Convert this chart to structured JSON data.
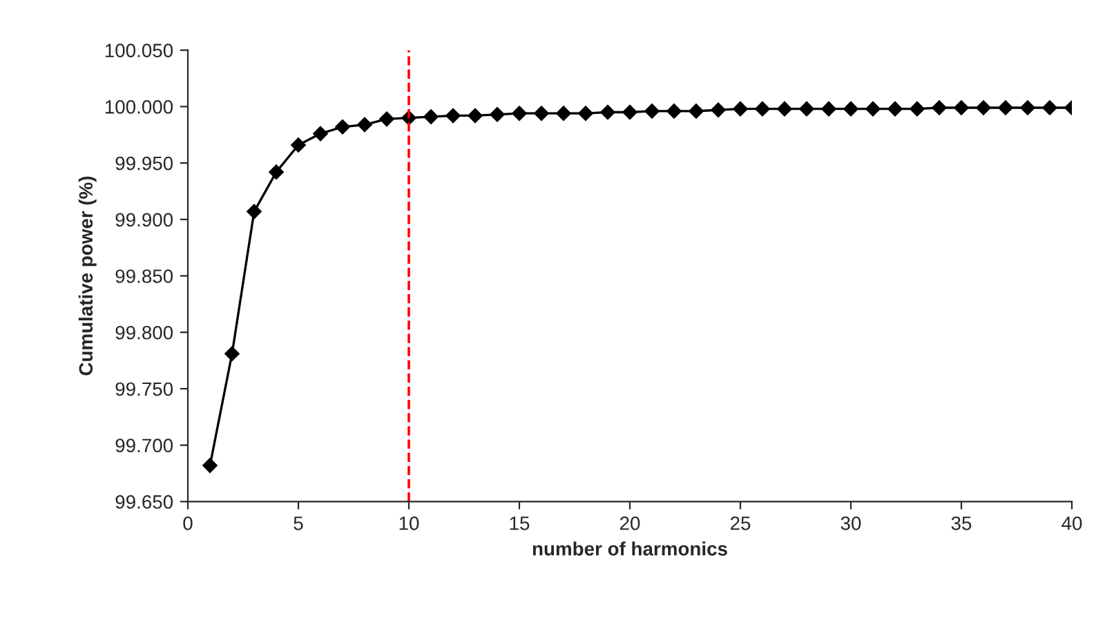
{
  "chart_data": {
    "type": "line",
    "xlabel": "number of harmonics",
    "ylabel": "Cumulative power (%)",
    "x": [
      1,
      2,
      3,
      4,
      5,
      6,
      7,
      8,
      9,
      10,
      11,
      12,
      13,
      14,
      15,
      16,
      17,
      18,
      19,
      20,
      21,
      22,
      23,
      24,
      25,
      26,
      27,
      28,
      29,
      30,
      31,
      32,
      33,
      34,
      35,
      36,
      37,
      38,
      39,
      40
    ],
    "series": [
      {
        "color": "#000000",
        "values": [
          99.682,
          99.781,
          99.907,
          99.942,
          99.966,
          99.976,
          99.982,
          99.984,
          99.989,
          99.99,
          99.991,
          99.992,
          99.992,
          99.993,
          99.994,
          99.994,
          99.994,
          99.994,
          99.995,
          99.995,
          99.996,
          99.996,
          99.996,
          99.997,
          99.998,
          99.998,
          99.998,
          99.998,
          99.998,
          99.998,
          99.998,
          99.998,
          99.998,
          99.999,
          99.999,
          99.999,
          99.999,
          99.999,
          99.999,
          99.999
        ]
      }
    ],
    "xlim": [
      0,
      40
    ],
    "xticks": [
      0,
      5,
      10,
      15,
      20,
      25,
      30,
      35,
      40
    ],
    "ylim": [
      99.65,
      100.05
    ],
    "yticks": [
      {
        "value": 99.65,
        "label": "99.650"
      },
      {
        "value": 99.7,
        "label": "99.700"
      },
      {
        "value": 99.75,
        "label": "99.750"
      },
      {
        "value": 99.8,
        "label": "99.800"
      },
      {
        "value": 99.85,
        "label": "99.850"
      },
      {
        "value": 99.9,
        "label": "99.900"
      },
      {
        "value": 99.95,
        "label": "99.950"
      },
      {
        "value": 100.0,
        "label": "100.000"
      },
      {
        "value": 100.05,
        "label": "100.050"
      }
    ],
    "ref_lines": [
      {
        "axis": "x",
        "value": 10,
        "color": "#ff0000",
        "line_style": "dashed"
      }
    ],
    "marker": "diamond",
    "line_style": "solid",
    "grid": false,
    "legend": false
  }
}
